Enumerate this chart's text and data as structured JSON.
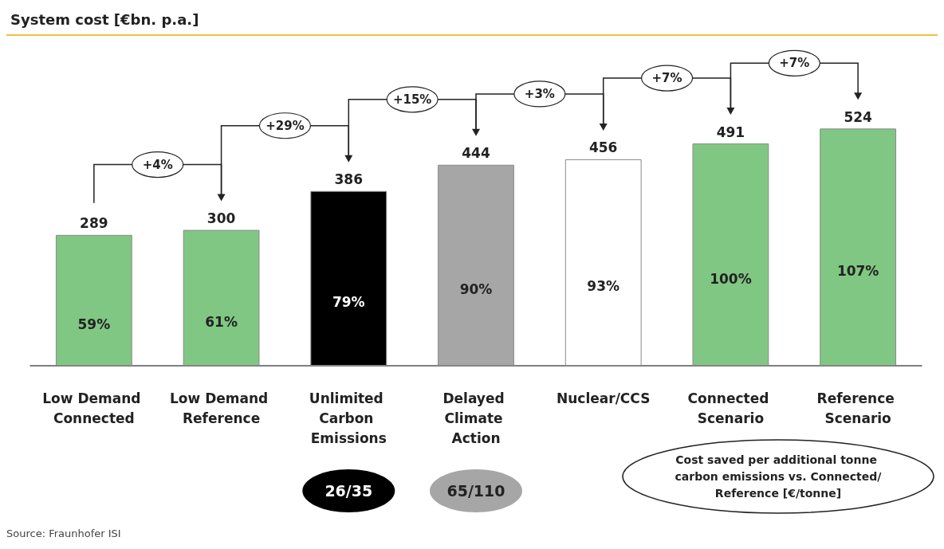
{
  "chart_data": {
    "type": "bar",
    "title": "System cost [€bn. p.a.]",
    "categories": [
      "Low Demand Connected",
      "Low Demand Reference",
      "Unlimited Carbon Emissions",
      "Delayed Climate Action",
      "Nuclear/CCS",
      "Connected Scenario",
      "Reference Scenario"
    ],
    "values": [
      289,
      300,
      386,
      444,
      456,
      491,
      524
    ],
    "colors": [
      "#80c783",
      "#80c783",
      "#000000",
      "#a6a6a6",
      "#ffffff",
      "#80c783",
      "#80c783"
    ],
    "data_labels": true,
    "annotations": [
      "+4%",
      "+29%",
      "+15%",
      "+3%",
      "+7%",
      "+7%",
      "59%",
      "61%",
      "79%",
      "90%",
      "93%",
      "100%",
      "107%",
      "26/35",
      "65/110",
      "Cost saved per additional tonne carbon emissions vs. Connected/Reference [€/tonne]",
      "Source: Fraunhofer ISI"
    ]
  }
}
